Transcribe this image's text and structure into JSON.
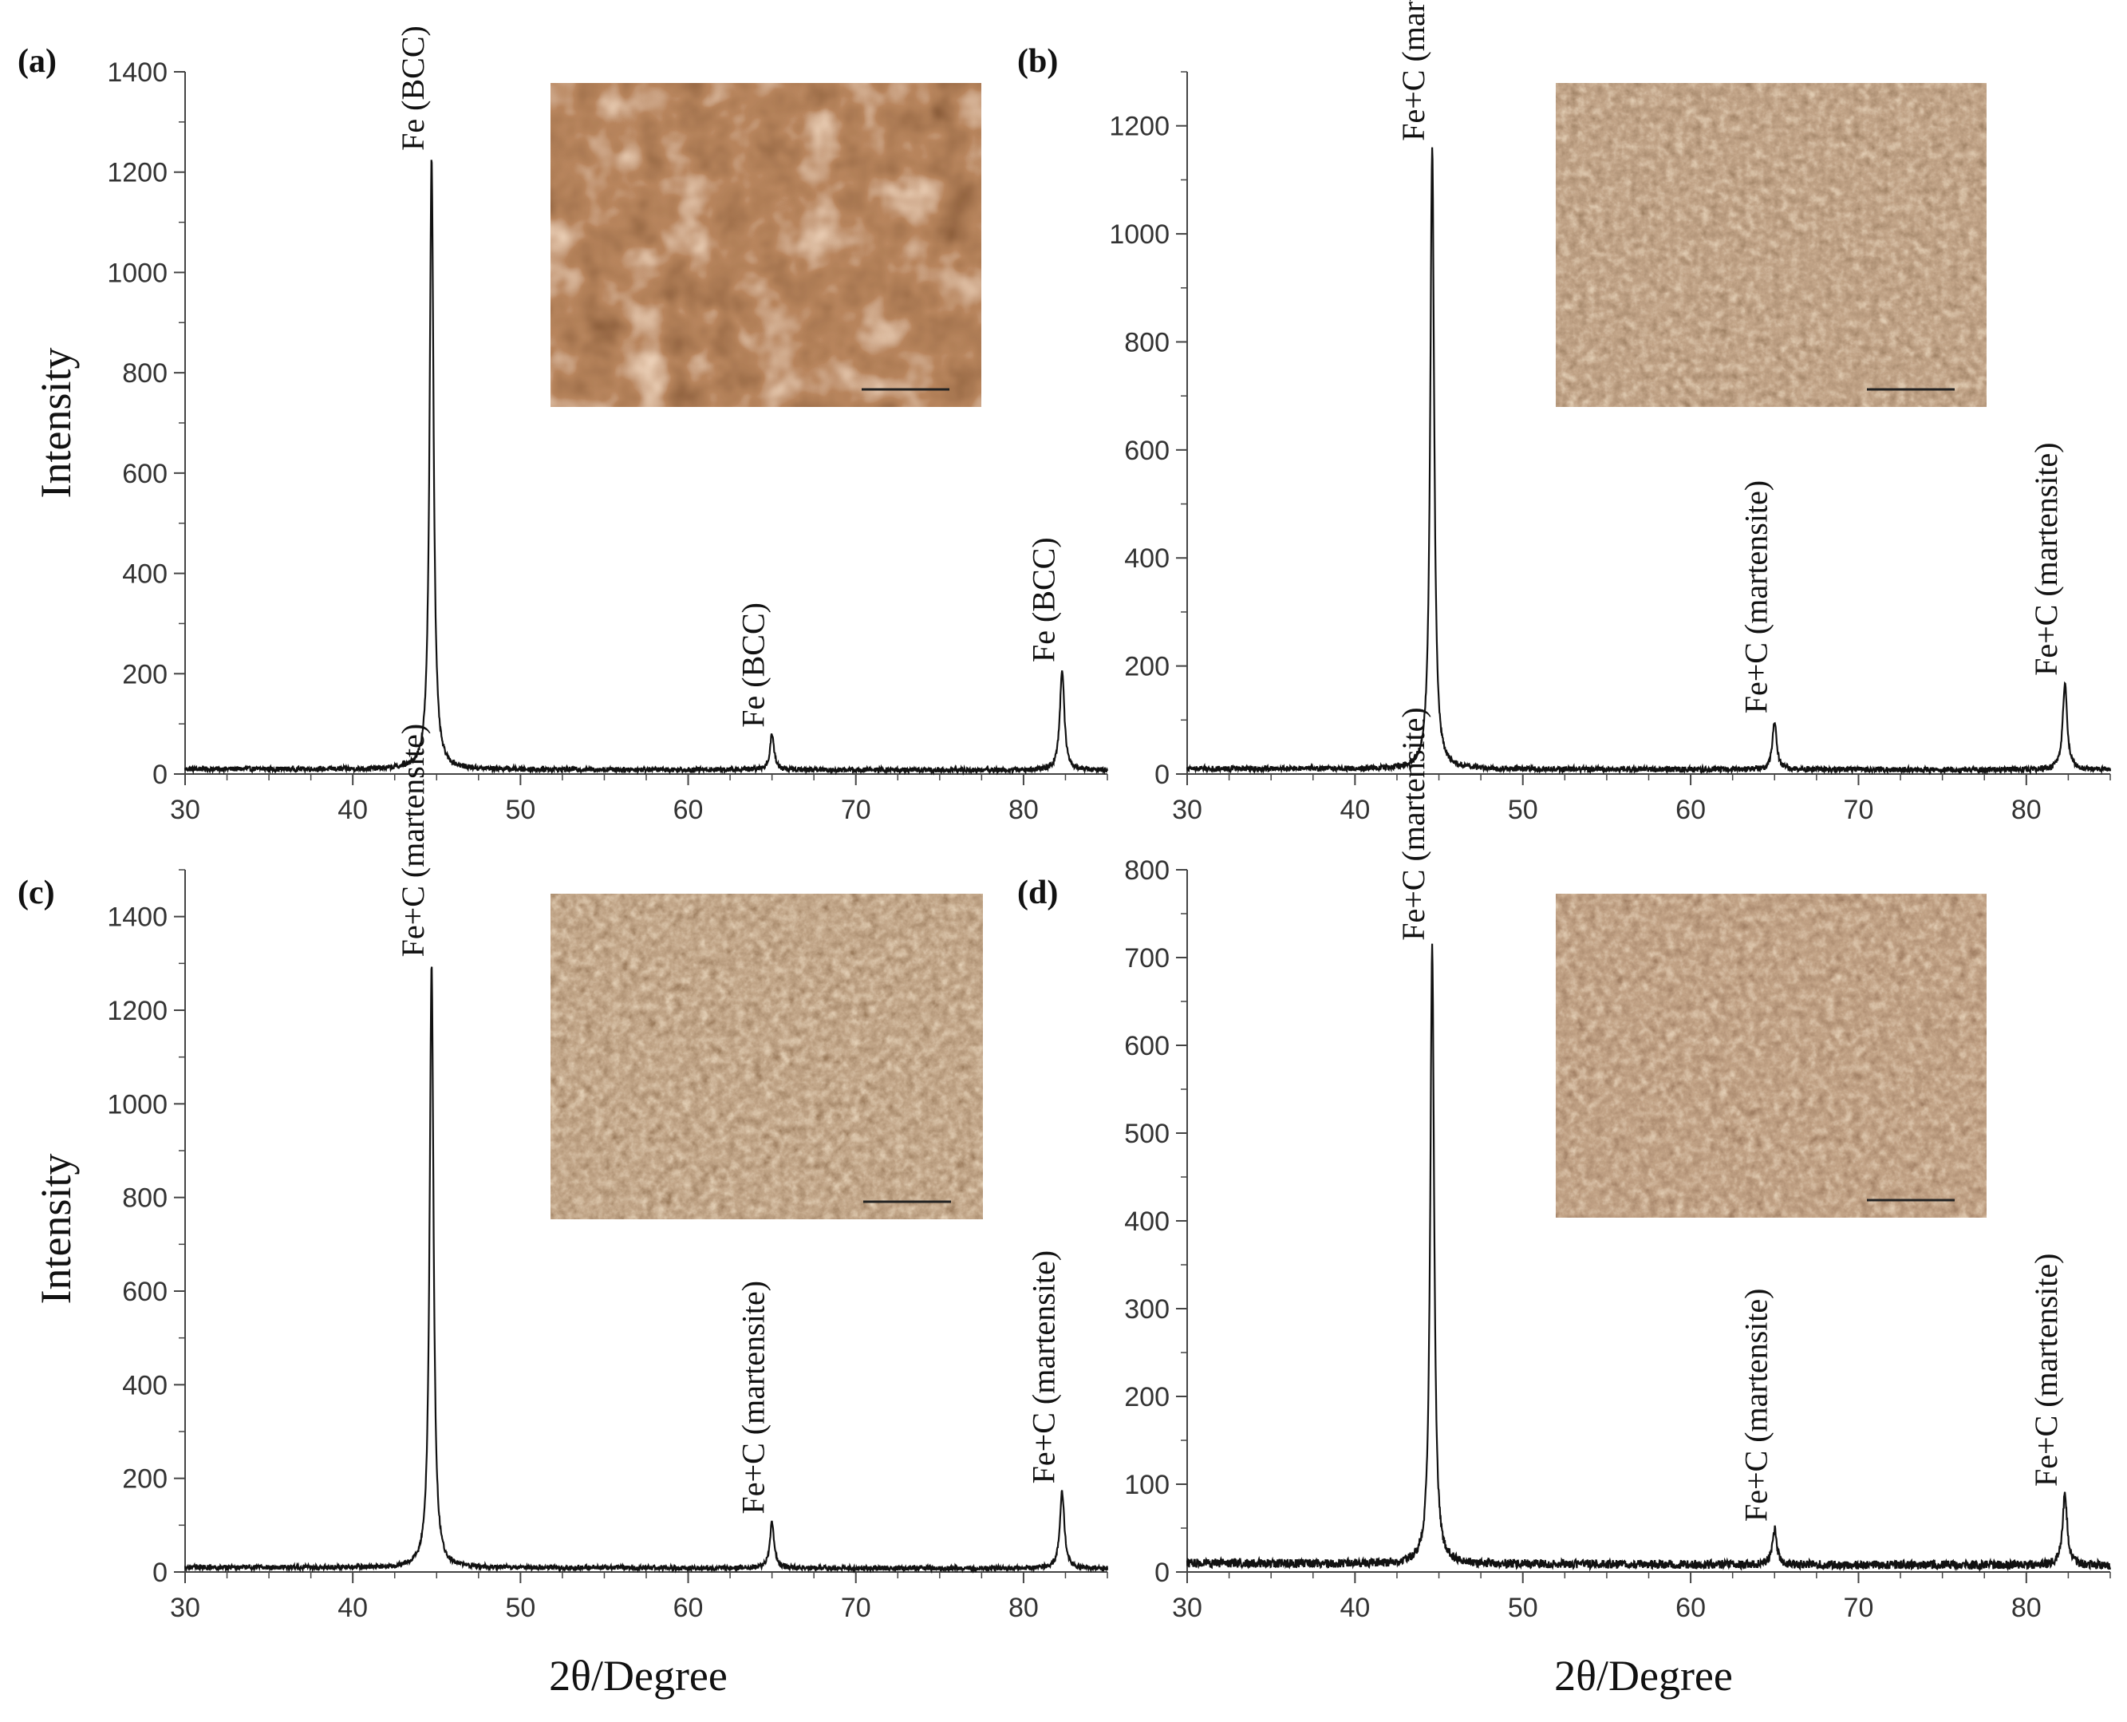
{
  "shared_labels": {
    "ylabel_top": "Intensity",
    "ylabel_bottom": "Intensity",
    "xlabel_left": "2θ/Degree",
    "xlabel_right": "2θ/Degree"
  },
  "chart_data": [
    {
      "type": "line",
      "panel_label": "(a)",
      "xlabel": "",
      "ylabel": "Intensity",
      "xlim": [
        30,
        85
      ],
      "ylim": [
        0,
        1400
      ],
      "xticks": [
        30,
        40,
        50,
        60,
        70,
        80
      ],
      "yticks": [
        0,
        200,
        400,
        600,
        800,
        1000,
        1200,
        1400
      ],
      "grid": false,
      "baseline": 10,
      "peaks": [
        {
          "x": 44.7,
          "y": 1230,
          "width": 0.28,
          "label": "Fe (BCC)"
        },
        {
          "x": 65.0,
          "y": 80,
          "width": 0.3,
          "label": "Fe (BCC)"
        },
        {
          "x": 82.3,
          "y": 210,
          "width": 0.32,
          "label": "Fe (BCC)"
        }
      ],
      "inset": {
        "image": "micrograph-ferrite",
        "color_dark": "#3e1a0a",
        "color_mid": "#7a3c1c",
        "color_light": "#e6b48a"
      }
    },
    {
      "type": "line",
      "panel_label": "(b)",
      "xlabel": "",
      "ylabel": "",
      "xlim": [
        30,
        85
      ],
      "ylim": [
        0,
        1300
      ],
      "xticks": [
        30,
        40,
        50,
        60,
        70,
        80
      ],
      "yticks": [
        0,
        200,
        400,
        600,
        800,
        1000,
        1200
      ],
      "grid": false,
      "baseline": 10,
      "peaks": [
        {
          "x": 44.6,
          "y": 1160,
          "width": 0.28,
          "label": "Fe+C (martensite)"
        },
        {
          "x": 65.0,
          "y": 100,
          "width": 0.3,
          "label": "Fe+C (martensite)"
        },
        {
          "x": 82.3,
          "y": 170,
          "width": 0.32,
          "label": "Fe+C (martensite)"
        }
      ],
      "inset": {
        "image": "micrograph-martensite",
        "color_dark": "#5a3a22",
        "color_mid": "#8a6040",
        "color_light": "#c09a72"
      }
    },
    {
      "type": "line",
      "panel_label": "(c)",
      "xlabel": "2θ/Degree",
      "ylabel": "Intensity",
      "xlim": [
        30,
        85
      ],
      "ylim": [
        0,
        1500
      ],
      "xticks": [
        30,
        40,
        50,
        60,
        70,
        80
      ],
      "yticks": [
        0,
        200,
        400,
        600,
        800,
        1000,
        1200,
        1400
      ],
      "grid": false,
      "baseline": 10,
      "peaks": [
        {
          "x": 44.7,
          "y": 1300,
          "width": 0.28,
          "label": "Fe+C (martensite)"
        },
        {
          "x": 65.0,
          "y": 110,
          "width": 0.3,
          "label": "Fe+C (martensite)"
        },
        {
          "x": 82.3,
          "y": 175,
          "width": 0.32,
          "label": "Fe+C (martensite)"
        }
      ],
      "inset": {
        "image": "micrograph-martensite",
        "color_dark": "#55341c",
        "color_mid": "#8c6442",
        "color_light": "#c8a47a"
      }
    },
    {
      "type": "line",
      "panel_label": "(d)",
      "xlabel": "2θ/Degree",
      "ylabel": "",
      "xlim": [
        30,
        85
      ],
      "ylim": [
        0,
        800
      ],
      "xticks": [
        30,
        40,
        50,
        60,
        70,
        80
      ],
      "yticks": [
        0,
        100,
        200,
        300,
        400,
        500,
        600,
        700,
        800
      ],
      "grid": false,
      "baseline": 10,
      "peaks": [
        {
          "x": 44.6,
          "y": 712,
          "width": 0.28,
          "label": "Fe+C (martensite)"
        },
        {
          "x": 65.0,
          "y": 50,
          "width": 0.32,
          "label": "Fe+C (martensite)"
        },
        {
          "x": 82.3,
          "y": 90,
          "width": 0.34,
          "label": "Fe+C (martensite)"
        }
      ],
      "inset": {
        "image": "micrograph-martensite",
        "color_dark": "#5a3620",
        "color_mid": "#8a5e3e",
        "color_light": "#c39c74"
      }
    }
  ]
}
